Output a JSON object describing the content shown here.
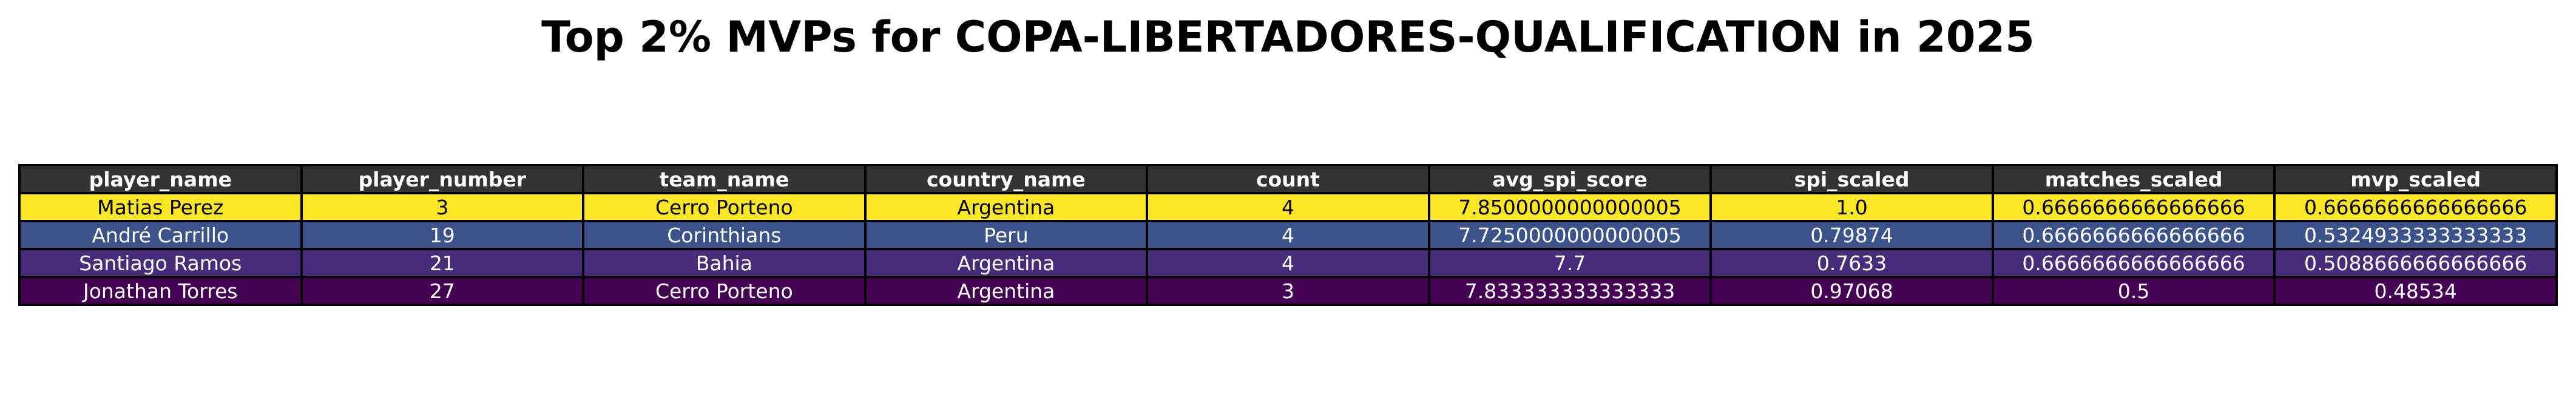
{
  "chart_data": {
    "type": "table",
    "title": "Top 2% MVPs for COPA-LIBERTADORES-QUALIFICATION in 2025",
    "columns": [
      "player_name",
      "player_number",
      "team_name",
      "country_name",
      "count",
      "avg_spi_score",
      "spi_scaled",
      "matches_scaled",
      "mvp_scaled"
    ],
    "rows": [
      [
        "Matias Perez",
        "3",
        "Cerro Porteno",
        "Argentina",
        "4",
        "7.8500000000000005",
        "1.0",
        "0.6666666666666666",
        "0.6666666666666666"
      ],
      [
        "André Carrillo",
        "19",
        "Corinthians",
        "Peru",
        "4",
        "7.7250000000000005",
        "0.79874",
        "0.6666666666666666",
        "0.5324933333333333"
      ],
      [
        "Santiago Ramos",
        "21",
        "Bahia",
        "Argentina",
        "4",
        "7.7",
        "0.7633",
        "0.6666666666666666",
        "0.5088666666666666"
      ],
      [
        "Jonathan Torres",
        "27",
        "Cerro Porteno",
        "Argentina",
        "3",
        "7.833333333333333",
        "0.97068",
        "0.5",
        "0.48534"
      ]
    ],
    "row_colors": [
      "#fde725",
      "#3b528b",
      "#472c7a",
      "#440154"
    ],
    "header_color": "#333333"
  }
}
